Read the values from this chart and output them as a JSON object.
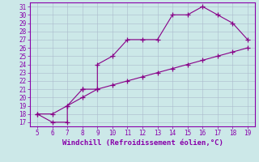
{
  "xlabel": "Windchill (Refroidissement éolien,°C)",
  "x_line1": [
    5,
    6,
    7,
    7,
    8,
    8,
    9,
    9,
    10,
    11,
    12,
    13,
    14,
    15,
    16,
    17,
    18,
    19
  ],
  "y_line1": [
    18,
    17,
    17,
    19,
    21,
    21,
    21,
    24,
    25,
    27,
    27,
    27,
    30,
    30,
    31,
    30,
    29,
    27
  ],
  "x_line2": [
    5,
    6,
    7,
    8,
    9,
    10,
    11,
    12,
    13,
    14,
    15,
    16,
    17,
    18,
    19
  ],
  "y_line2": [
    18,
    18,
    19,
    20,
    21,
    21.5,
    22,
    22.5,
    23,
    23.5,
    24,
    24.5,
    25,
    25.5,
    26
  ],
  "line_color": "#880088",
  "bg_color": "#cce8e8",
  "grid_color": "#aabbcc",
  "plot_bg": "#cce8e8",
  "spine_color": "#8800aa",
  "xlim_min": 4.5,
  "xlim_max": 19.5,
  "ylim_min": 16.5,
  "ylim_max": 31.5,
  "xticks": [
    5,
    6,
    7,
    8,
    9,
    10,
    11,
    12,
    13,
    14,
    15,
    16,
    17,
    18,
    19
  ],
  "yticks": [
    17,
    18,
    19,
    20,
    21,
    22,
    23,
    24,
    25,
    26,
    27,
    28,
    29,
    30,
    31
  ],
  "marker_size": 4,
  "linewidth": 0.8,
  "tick_fontsize": 5.5,
  "xlabel_fontsize": 6.5
}
